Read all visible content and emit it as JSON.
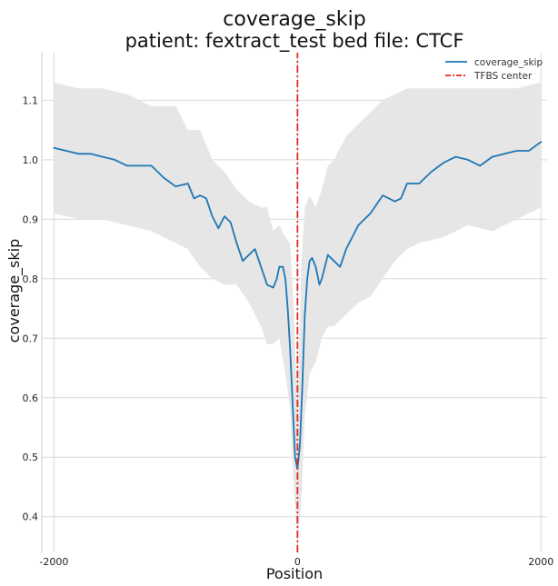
{
  "chart_data": {
    "type": "line",
    "title": "coverage_skip",
    "subtitle": "patient: fextract_test bed file: CTCF",
    "xlabel": "Position",
    "ylabel": "coverage_skip",
    "xlim": [
      -2100,
      2050
    ],
    "ylim": [
      0.34,
      1.18
    ],
    "x_ticks": [
      -2000,
      0,
      2000
    ],
    "x_tick_labels": [
      "-2000",
      "0",
      "2000"
    ],
    "y_ticks": [
      0.4,
      0.5,
      0.6,
      0.7,
      0.8,
      0.9,
      1.0,
      1.1
    ],
    "y_tick_labels": [
      "0.4",
      "0.5",
      "0.6",
      "0.7",
      "0.8",
      "0.9",
      "1.0",
      "1.1"
    ],
    "grid": true,
    "legend_position": "top-right",
    "legend": [
      "coverage_skip",
      "TFBS center"
    ],
    "series": [
      {
        "name": "coverage_skip",
        "color": "#1f77b4",
        "x": [
          -2000,
          -1900,
          -1800,
          -1700,
          -1600,
          -1500,
          -1400,
          -1300,
          -1200,
          -1100,
          -1000,
          -900,
          -850,
          -800,
          -750,
          -700,
          -650,
          -600,
          -550,
          -500,
          -450,
          -400,
          -350,
          -300,
          -250,
          -200,
          -170,
          -150,
          -120,
          -100,
          -80,
          -60,
          -40,
          -20,
          0,
          20,
          40,
          60,
          80,
          100,
          120,
          150,
          180,
          200,
          250,
          300,
          350,
          400,
          450,
          500,
          600,
          700,
          800,
          850,
          900,
          1000,
          1100,
          1200,
          1300,
          1400,
          1500,
          1600,
          1700,
          1800,
          1900,
          2000
        ],
        "y": [
          1.02,
          1.015,
          1.01,
          1.01,
          1.005,
          1.0,
          0.99,
          0.99,
          0.99,
          0.97,
          0.955,
          0.96,
          0.935,
          0.94,
          0.935,
          0.905,
          0.885,
          0.905,
          0.895,
          0.86,
          0.83,
          0.84,
          0.85,
          0.82,
          0.79,
          0.785,
          0.8,
          0.82,
          0.82,
          0.8,
          0.75,
          0.68,
          0.59,
          0.5,
          0.48,
          0.52,
          0.62,
          0.74,
          0.8,
          0.83,
          0.835,
          0.82,
          0.79,
          0.8,
          0.84,
          0.83,
          0.82,
          0.85,
          0.87,
          0.89,
          0.91,
          0.94,
          0.93,
          0.935,
          0.96,
          0.96,
          0.98,
          0.995,
          1.005,
          1.0,
          0.99,
          1.005,
          1.01,
          1.015,
          1.015,
          1.03
        ]
      },
      {
        "name": "TFBS center",
        "color": "#e3261c",
        "x": [
          0,
          0
        ],
        "y": [
          0.34,
          1.18
        ]
      }
    ],
    "band": {
      "color": "#e6e6e6",
      "x": [
        -2000,
        -1800,
        -1600,
        -1400,
        -1200,
        -1000,
        -900,
        -800,
        -700,
        -600,
        -500,
        -400,
        -300,
        -250,
        -200,
        -150,
        -100,
        -60,
        -30,
        0,
        30,
        60,
        100,
        150,
        200,
        250,
        300,
        400,
        500,
        600,
        700,
        800,
        900,
        1000,
        1200,
        1400,
        1600,
        1800,
        2000
      ],
      "upper": [
        1.13,
        1.12,
        1.12,
        1.11,
        1.09,
        1.09,
        1.05,
        1.05,
        1.0,
        0.98,
        0.95,
        0.93,
        0.92,
        0.92,
        0.88,
        0.89,
        0.87,
        0.86,
        0.75,
        0.57,
        0.82,
        0.92,
        0.94,
        0.92,
        0.95,
        0.99,
        1.0,
        1.04,
        1.06,
        1.08,
        1.1,
        1.11,
        1.12,
        1.12,
        1.12,
        1.12,
        1.12,
        1.12,
        1.13
      ],
      "lower": [
        0.91,
        0.9,
        0.9,
        0.89,
        0.88,
        0.86,
        0.85,
        0.82,
        0.8,
        0.79,
        0.79,
        0.76,
        0.72,
        0.69,
        0.69,
        0.7,
        0.64,
        0.58,
        0.45,
        0.36,
        0.42,
        0.57,
        0.64,
        0.66,
        0.7,
        0.72,
        0.72,
        0.74,
        0.76,
        0.77,
        0.8,
        0.83,
        0.85,
        0.86,
        0.87,
        0.89,
        0.88,
        0.9,
        0.92
      ]
    }
  }
}
